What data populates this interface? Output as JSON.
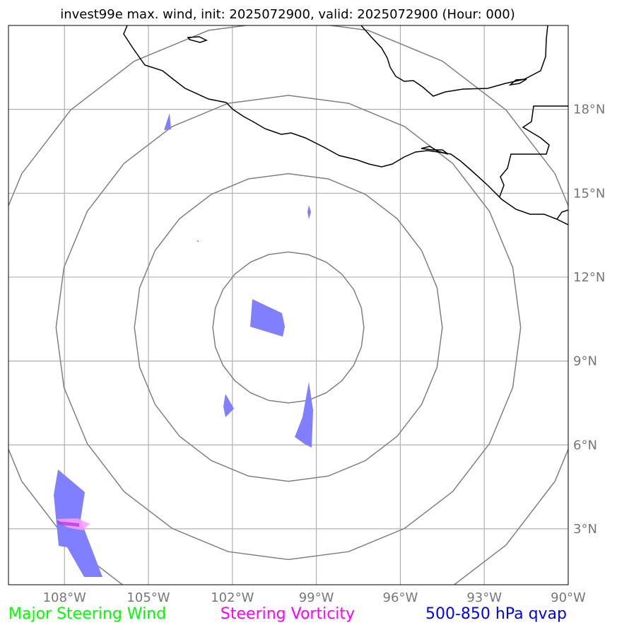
{
  "title": "invest99e max. wind, init: 2025072900, valid: 2025072900 (Hour: 000)",
  "map": {
    "projection": "PlateCarree",
    "extent": {
      "lon_min": -110,
      "lon_max": -90,
      "lat_min": 1,
      "lat_max": 21
    },
    "gridlines": {
      "longitudes": [
        -108,
        -105,
        -102,
        -99,
        -96,
        -93,
        -90
      ],
      "latitudes": [
        3,
        6,
        9,
        12,
        15,
        18
      ]
    },
    "center": {
      "lon": -100,
      "lat": 10.2
    },
    "range_rings_deg": [
      2.7,
      5.5,
      8.3,
      11.0
    ],
    "colors": {
      "gridline": "#b0b0b0",
      "ring": "#808080",
      "coastline": "#000000",
      "qvap_fill": "#7f7fff",
      "vorticity_fill": "#ff9cff"
    }
  },
  "axis_labels": {
    "longitude": [
      "108°W",
      "105°W",
      "102°W",
      "99°W",
      "96°W",
      "93°W",
      "90°W"
    ],
    "latitude": [
      "3°N",
      "6°N",
      "9°N",
      "12°N",
      "15°N",
      "18°N"
    ]
  },
  "legend": [
    {
      "label": "Major Steering Wind",
      "color": "#00ff00"
    },
    {
      "label": "Steering Vorticity",
      "color": "#ff00ff"
    },
    {
      "label": "500-850 hPa qvap",
      "color": "#0000ff"
    }
  ]
}
